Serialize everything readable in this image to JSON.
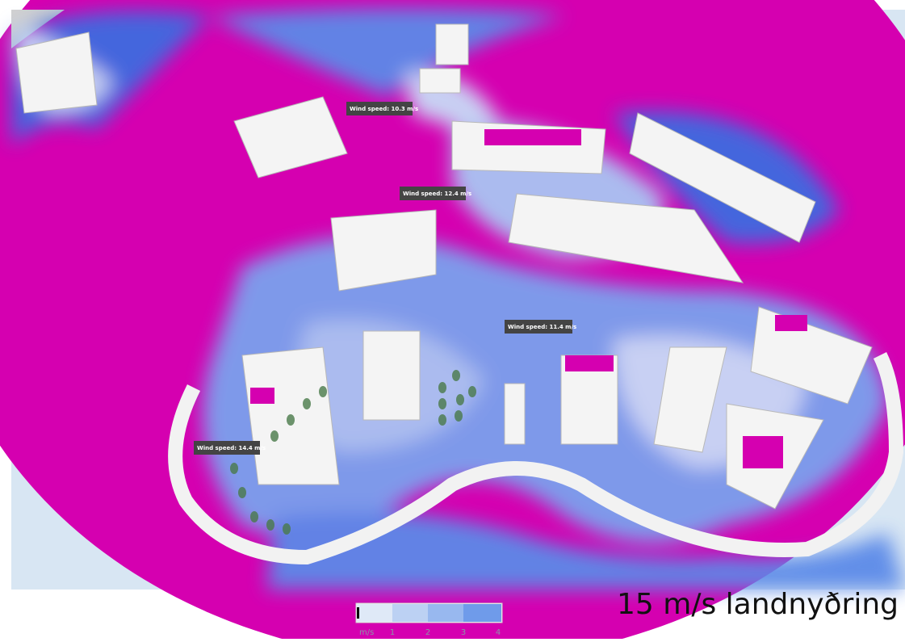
{
  "tooltips": [
    "Wind speed: 10.3 m/s",
    "Wind speed: 12.4 m/s",
    "Wind speed: 11.4 m/s",
    "Wind speed: 14.4 m/s"
  ],
  "legend": {
    "unit": "m/s",
    "ticks": [
      "1",
      "2",
      "3",
      "4"
    ]
  },
  "caption": "15 m/s  landnyðring"
}
